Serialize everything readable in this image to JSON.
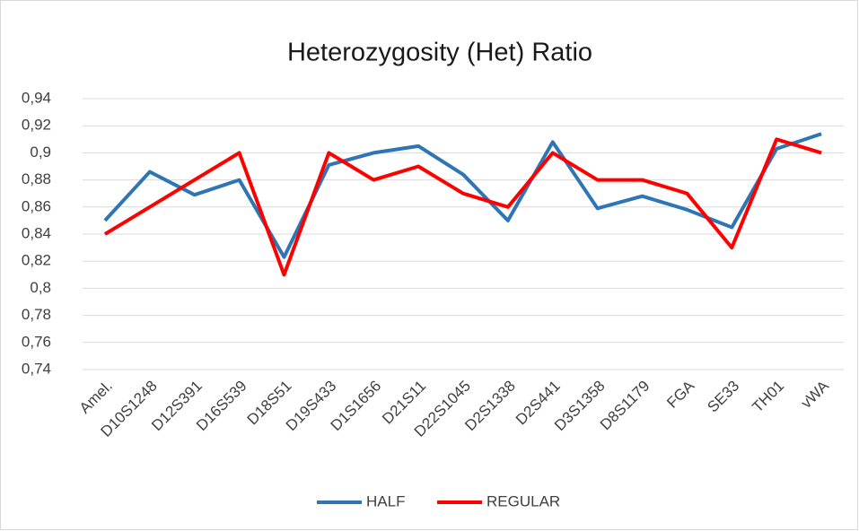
{
  "chart_data": {
    "type": "line",
    "title": "Heterozygosity (Het) Ratio",
    "categories": [
      "Amel.",
      "D10S1248",
      "D12S391",
      "D16S539",
      "D18S51",
      "D19S433",
      "D1S1656",
      "D21S11",
      "D22S1045",
      "D2S1338",
      "D2S441",
      "D3S1358",
      "D8S1179",
      "FGA",
      "SE33",
      "TH01",
      "vWA"
    ],
    "series": [
      {
        "name": "HALF",
        "color": "#2e75b6",
        "values": [
          0.85,
          0.886,
          0.869,
          0.88,
          0.823,
          0.891,
          0.9,
          0.905,
          0.884,
          0.85,
          0.908,
          0.859,
          0.868,
          0.858,
          0.845,
          0.903,
          0.914
        ]
      },
      {
        "name": "REGULAR",
        "color": "#ff0000",
        "values": [
          0.84,
          0.86,
          0.88,
          0.9,
          0.81,
          0.9,
          0.88,
          0.89,
          0.87,
          0.86,
          0.9,
          0.88,
          0.88,
          0.87,
          0.83,
          0.91,
          0.9
        ]
      }
    ],
    "ylim": [
      0.74,
      0.94
    ],
    "yticks": [
      {
        "value": 0.74,
        "label": "0,74"
      },
      {
        "value": 0.76,
        "label": "0,76"
      },
      {
        "value": 0.78,
        "label": "0,78"
      },
      {
        "value": 0.8,
        "label": "0,8"
      },
      {
        "value": 0.82,
        "label": "0,82"
      },
      {
        "value": 0.84,
        "label": "0,84"
      },
      {
        "value": 0.86,
        "label": "0,86"
      },
      {
        "value": 0.88,
        "label": "0,88"
      },
      {
        "value": 0.9,
        "label": "0,9"
      },
      {
        "value": 0.92,
        "label": "0,92"
      },
      {
        "value": 0.94,
        "label": "0,94"
      }
    ],
    "grid": true,
    "legend": "bottom"
  }
}
